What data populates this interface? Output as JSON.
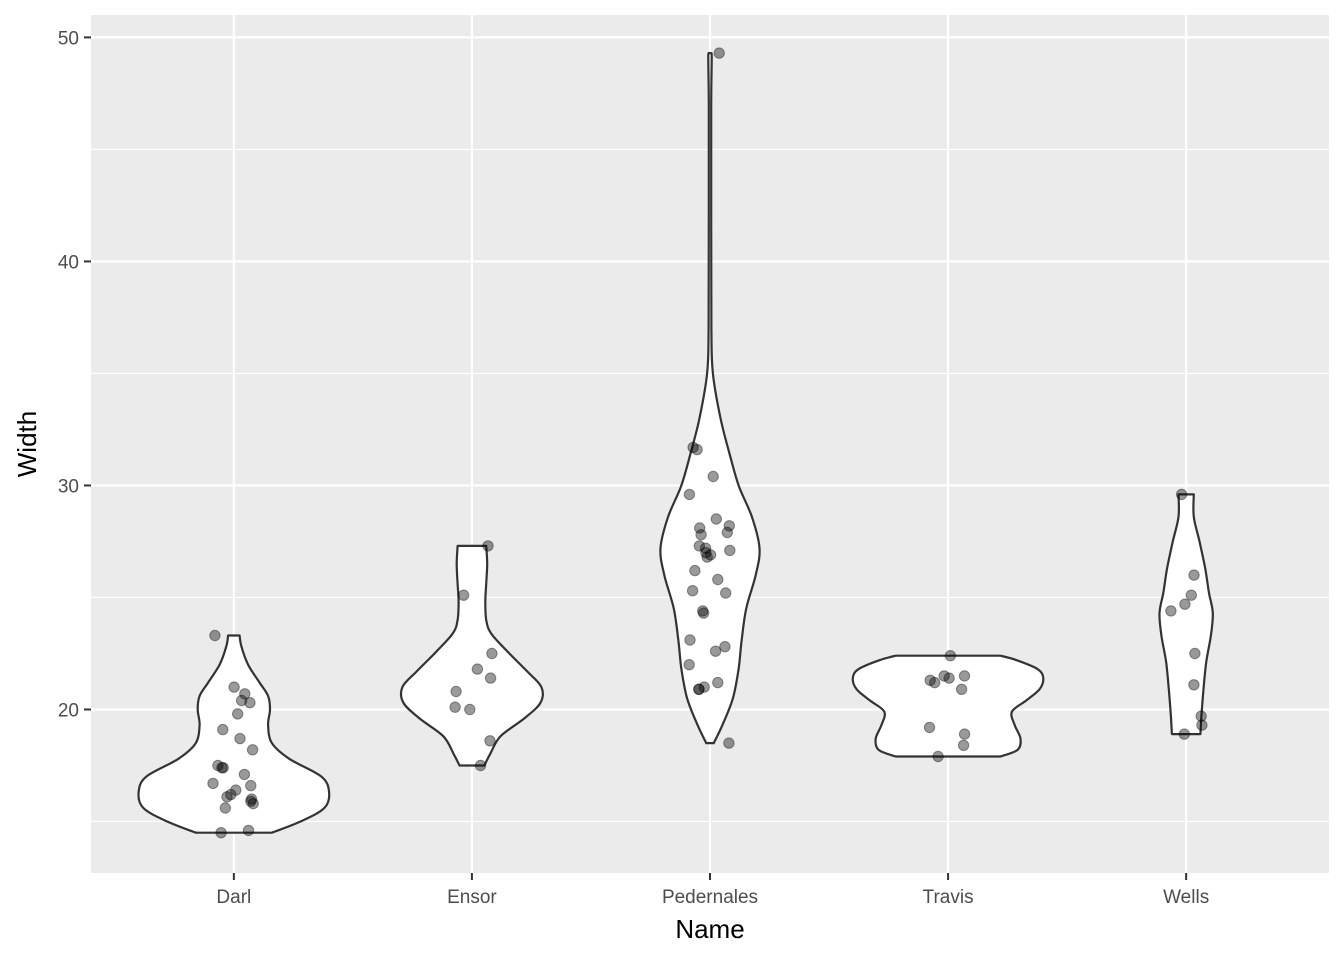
{
  "chart_data": {
    "type": "violin",
    "xlabel": "Name",
    "ylabel": "Width",
    "categories": [
      "Darl",
      "Ensor",
      "Pedernales",
      "Travis",
      "Wells"
    ],
    "ylim": [
      12.7,
      51
    ],
    "yticks": [
      20,
      30,
      40,
      50
    ],
    "grid": true,
    "colors": {
      "panel": "#ebebeb",
      "grid": "#ffffff",
      "violin_fill": "#ffffff",
      "violin_stroke": "#333333",
      "point": "#000000",
      "point_alpha": 0.4
    },
    "series": [
      {
        "category": "Darl",
        "points": [
          23.3,
          21.0,
          20.7,
          20.4,
          20.3,
          19.8,
          19.1,
          18.7,
          18.2,
          17.5,
          17.4,
          17.4,
          17.1,
          16.7,
          16.6,
          16.4,
          16.2,
          16.1,
          16.0,
          15.9,
          15.8,
          15.6,
          14.6,
          14.5
        ],
        "density": [
          [
            14.5,
            0.4
          ],
          [
            15.0,
            0.7
          ],
          [
            15.6,
            0.95
          ],
          [
            16.3,
            1.0
          ],
          [
            17.0,
            0.92
          ],
          [
            17.8,
            0.58
          ],
          [
            18.5,
            0.4
          ],
          [
            19.3,
            0.36
          ],
          [
            20.0,
            0.38
          ],
          [
            20.6,
            0.36
          ],
          [
            21.2,
            0.27
          ],
          [
            22.0,
            0.15
          ],
          [
            22.8,
            0.08
          ],
          [
            23.3,
            0.06
          ]
        ]
      },
      {
        "category": "Ensor",
        "points": [
          27.3,
          25.1,
          22.5,
          21.8,
          21.4,
          20.8,
          20.1,
          20.0,
          18.6,
          17.5
        ],
        "density": [
          [
            17.5,
            0.13
          ],
          [
            18.0,
            0.19
          ],
          [
            18.8,
            0.3
          ],
          [
            19.6,
            0.55
          ],
          [
            20.3,
            0.72
          ],
          [
            21.0,
            0.73
          ],
          [
            21.7,
            0.58
          ],
          [
            22.6,
            0.37
          ],
          [
            23.4,
            0.2
          ],
          [
            24.0,
            0.15
          ],
          [
            24.8,
            0.14
          ],
          [
            25.6,
            0.15
          ],
          [
            26.5,
            0.16
          ],
          [
            27.3,
            0.15
          ]
        ]
      },
      {
        "category": "Pedernales",
        "points": [
          49.3,
          31.7,
          31.6,
          30.4,
          29.6,
          28.5,
          28.2,
          28.1,
          27.9,
          27.8,
          27.3,
          27.2,
          27.1,
          27.0,
          26.9,
          26.8,
          26.2,
          25.8,
          25.3,
          25.2,
          24.4,
          24.3,
          23.1,
          22.8,
          22.6,
          22.0,
          21.2,
          21.0,
          20.9,
          20.9,
          18.5
        ],
        "density": [
          [
            18.5,
            0.04
          ],
          [
            19.3,
            0.13
          ],
          [
            20.5,
            0.24
          ],
          [
            21.8,
            0.3
          ],
          [
            23.0,
            0.33
          ],
          [
            24.5,
            0.38
          ],
          [
            26.0,
            0.48
          ],
          [
            27.2,
            0.52
          ],
          [
            28.6,
            0.44
          ],
          [
            30.0,
            0.3
          ],
          [
            31.5,
            0.2
          ],
          [
            33.0,
            0.11
          ],
          [
            35.0,
            0.03
          ],
          [
            37.0,
            0.015
          ],
          [
            42.0,
            0.013
          ],
          [
            47.0,
            0.013
          ],
          [
            49.0,
            0.018
          ],
          [
            49.3,
            0.016
          ]
        ]
      },
      {
        "category": "Travis",
        "points": [
          22.4,
          21.5,
          21.5,
          21.4,
          21.3,
          21.2,
          20.9,
          19.2,
          18.9,
          18.4,
          17.9
        ],
        "density": [
          [
            17.9,
            0.55
          ],
          [
            18.2,
            0.73
          ],
          [
            18.7,
            0.76
          ],
          [
            19.3,
            0.7
          ],
          [
            19.9,
            0.67
          ],
          [
            20.4,
            0.82
          ],
          [
            20.9,
            0.96
          ],
          [
            21.4,
            1.0
          ],
          [
            21.8,
            0.94
          ],
          [
            22.2,
            0.72
          ],
          [
            22.4,
            0.55
          ]
        ]
      },
      {
        "category": "Wells",
        "points": [
          29.6,
          26.0,
          25.1,
          24.7,
          24.4,
          22.5,
          21.1,
          19.7,
          19.3,
          18.9
        ],
        "density": [
          [
            18.9,
            0.15
          ],
          [
            19.7,
            0.16
          ],
          [
            20.8,
            0.18
          ],
          [
            22.1,
            0.21
          ],
          [
            23.3,
            0.26
          ],
          [
            24.3,
            0.28
          ],
          [
            25.2,
            0.24
          ],
          [
            26.3,
            0.2
          ],
          [
            27.5,
            0.14
          ],
          [
            28.6,
            0.08
          ],
          [
            29.6,
            0.08
          ]
        ]
      }
    ]
  }
}
